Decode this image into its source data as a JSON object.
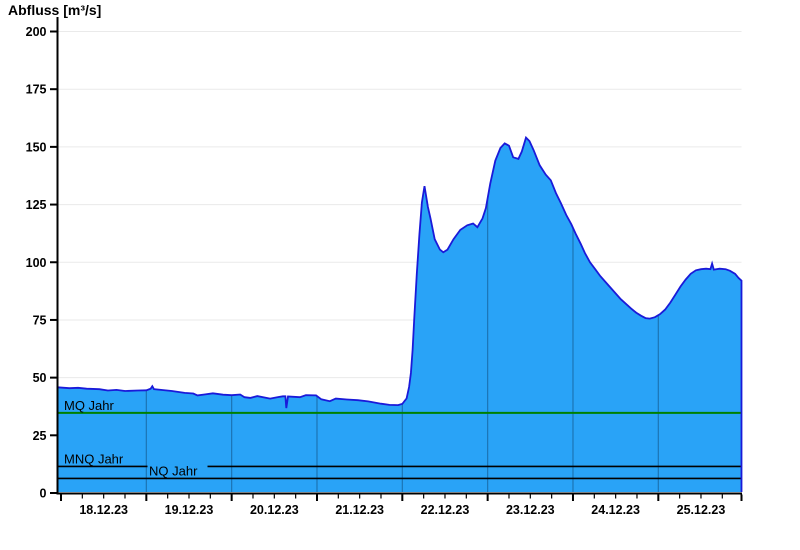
{
  "chart_data": {
    "type": "area",
    "title": "Abfluss [m³/s]",
    "ylabel": "Abfluss [m³/s]",
    "xlabel": "",
    "ylim": [
      0,
      200
    ],
    "y_ticks": [
      0,
      25,
      50,
      75,
      100,
      125,
      150,
      175,
      200
    ],
    "x_tick_labels": [
      "18.12.23",
      "19.12.23",
      "20.12.23",
      "21.12.23",
      "22.12.23",
      "23.12.23",
      "24.12.23",
      "25.12.23"
    ],
    "x_days_total": 8,
    "x_minor_ticks_per_day": 4,
    "grid": "horizontal-light",
    "legend": "none",
    "series": [
      {
        "name": "Abfluss",
        "unit": "m³/s",
        "points": [
          [
            -0.04,
            45.8
          ],
          [
            0.1,
            45.4
          ],
          [
            0.2,
            45.6
          ],
          [
            0.3,
            45.2
          ],
          [
            0.45,
            45.0
          ],
          [
            0.55,
            44.4
          ],
          [
            0.65,
            44.7
          ],
          [
            0.75,
            44.2
          ],
          [
            0.9,
            44.4
          ],
          [
            1.0,
            44.5
          ],
          [
            1.05,
            45.2
          ],
          [
            1.07,
            46.3
          ],
          [
            1.09,
            45.0
          ],
          [
            1.2,
            44.6
          ],
          [
            1.3,
            44.2
          ],
          [
            1.45,
            43.4
          ],
          [
            1.55,
            43.1
          ],
          [
            1.6,
            42.3
          ],
          [
            1.68,
            42.7
          ],
          [
            1.78,
            43.2
          ],
          [
            1.9,
            42.6
          ],
          [
            2.0,
            42.4
          ],
          [
            2.1,
            42.7
          ],
          [
            2.15,
            41.5
          ],
          [
            2.22,
            41.2
          ],
          [
            2.3,
            42.0
          ],
          [
            2.45,
            40.9
          ],
          [
            2.55,
            41.6
          ],
          [
            2.6,
            41.9
          ],
          [
            2.63,
            41.9
          ],
          [
            2.64,
            36.8
          ],
          [
            2.66,
            41.8
          ],
          [
            2.8,
            41.5
          ],
          [
            2.87,
            42.4
          ],
          [
            2.99,
            42.3
          ],
          [
            3.05,
            40.6
          ],
          [
            3.15,
            39.8
          ],
          [
            3.22,
            40.9
          ],
          [
            3.35,
            40.5
          ],
          [
            3.48,
            40.2
          ],
          [
            3.6,
            39.7
          ],
          [
            3.75,
            38.7
          ],
          [
            3.85,
            38.2
          ],
          [
            3.95,
            38.1
          ],
          [
            4.0,
            38.6
          ],
          [
            4.05,
            41.0
          ],
          [
            4.08,
            46.0
          ],
          [
            4.1,
            52.0
          ],
          [
            4.12,
            62.0
          ],
          [
            4.14,
            76.0
          ],
          [
            4.17,
            95.0
          ],
          [
            4.2,
            112.0
          ],
          [
            4.23,
            126.0
          ],
          [
            4.26,
            133.0
          ],
          [
            4.3,
            124.0
          ],
          [
            4.33,
            119.0
          ],
          [
            4.38,
            110.0
          ],
          [
            4.44,
            105.5
          ],
          [
            4.48,
            104.3
          ],
          [
            4.53,
            105.5
          ],
          [
            4.6,
            110.0
          ],
          [
            4.68,
            114.0
          ],
          [
            4.76,
            116.0
          ],
          [
            4.83,
            116.8
          ],
          [
            4.88,
            115.2
          ],
          [
            4.94,
            119.0
          ],
          [
            4.98,
            123.5
          ],
          [
            5.03,
            134.0
          ],
          [
            5.09,
            144.0
          ],
          [
            5.15,
            149.5
          ],
          [
            5.2,
            151.5
          ],
          [
            5.25,
            150.5
          ],
          [
            5.3,
            145.5
          ],
          [
            5.36,
            144.8
          ],
          [
            5.4,
            148.0
          ],
          [
            5.45,
            154.0
          ],
          [
            5.49,
            152.5
          ],
          [
            5.54,
            148.5
          ],
          [
            5.61,
            142.0
          ],
          [
            5.68,
            138.0
          ],
          [
            5.74,
            135.5
          ],
          [
            5.8,
            130.0
          ],
          [
            5.86,
            125.5
          ],
          [
            5.92,
            120.5
          ],
          [
            5.98,
            116.5
          ],
          [
            6.03,
            112.5
          ],
          [
            6.09,
            108.0
          ],
          [
            6.14,
            104.0
          ],
          [
            6.2,
            100.0
          ],
          [
            6.26,
            97.0
          ],
          [
            6.32,
            94.0
          ],
          [
            6.38,
            91.5
          ],
          [
            6.44,
            89.0
          ],
          [
            6.5,
            86.5
          ],
          [
            6.56,
            84.0
          ],
          [
            6.62,
            82.0
          ],
          [
            6.68,
            80.0
          ],
          [
            6.74,
            78.2
          ],
          [
            6.8,
            76.8
          ],
          [
            6.85,
            75.8
          ],
          [
            6.9,
            75.6
          ],
          [
            6.96,
            76.2
          ],
          [
            7.02,
            77.5
          ],
          [
            7.08,
            79.5
          ],
          [
            7.14,
            82.5
          ],
          [
            7.2,
            86.0
          ],
          [
            7.26,
            89.5
          ],
          [
            7.32,
            92.5
          ],
          [
            7.38,
            95.0
          ],
          [
            7.44,
            96.5
          ],
          [
            7.5,
            97.0
          ],
          [
            7.56,
            97.2
          ],
          [
            7.61,
            97.0
          ],
          [
            7.63,
            99.4
          ],
          [
            7.65,
            96.8
          ],
          [
            7.72,
            97.2
          ],
          [
            7.79,
            97.0
          ],
          [
            7.84,
            96.3
          ],
          [
            7.9,
            95.0
          ],
          [
            7.94,
            93.2
          ],
          [
            7.98,
            92.0
          ]
        ]
      }
    ],
    "reference_lines": [
      {
        "id": "mq",
        "label": "MQ Jahr",
        "value": 34.7,
        "color": "#008000"
      },
      {
        "id": "mnq",
        "label": "MNQ Jahr",
        "value": 11.5,
        "color": "#000000"
      },
      {
        "id": "nq",
        "label": "NQ Jahr",
        "value": 6.3,
        "color": "#000000"
      }
    ],
    "colors": {
      "fill": "#29A3F7",
      "outline": "#1A1AD9",
      "day_gridline": "#1C74B4",
      "h_gridline": "#EAEAEA",
      "axis": "#000000",
      "background": "#FFFFFF"
    }
  }
}
